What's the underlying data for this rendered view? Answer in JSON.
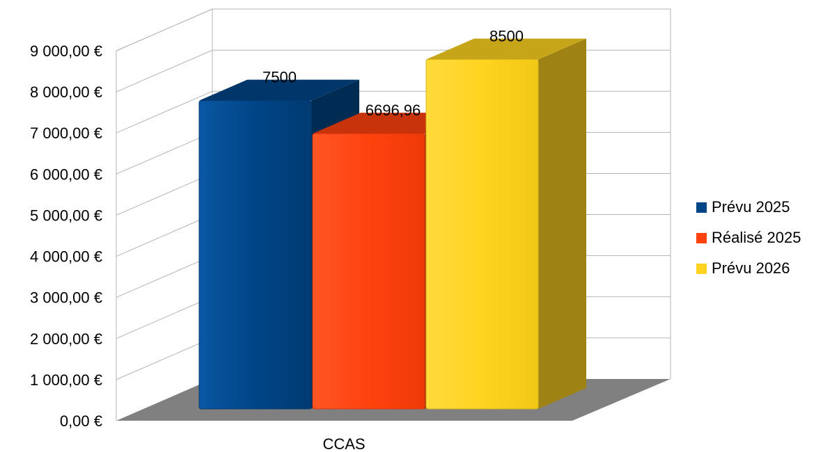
{
  "chart_data": {
    "type": "bar",
    "categories": [
      "CCAS"
    ],
    "series": [
      {
        "name": "Prévu 2025",
        "values": [
          7500
        ],
        "color": "#004586",
        "label": "7500"
      },
      {
        "name": "Réalisé 2025",
        "values": [
          6696.96
        ],
        "color": "#ff420e",
        "label": "6696,96"
      },
      {
        "name": "Prévu 2026",
        "values": [
          8500
        ],
        "color": "#ffd320",
        "label": "8500"
      }
    ],
    "ylim": [
      0,
      9000
    ],
    "yticks": [
      0,
      1000,
      2000,
      3000,
      4000,
      5000,
      6000,
      7000,
      8000,
      9000
    ],
    "ytick_labels": [
      "0,00 €",
      "1 000,00 €",
      "2 000,00 €",
      "3 000,00 €",
      "4 000,00 €",
      "5 000,00 €",
      "6 000,00 €",
      "7 000,00 €",
      "8 000,00 €",
      "9 000,00 €"
    ],
    "grid": true,
    "three_d": true,
    "legend_position": "right",
    "floor_color": "#808080"
  }
}
